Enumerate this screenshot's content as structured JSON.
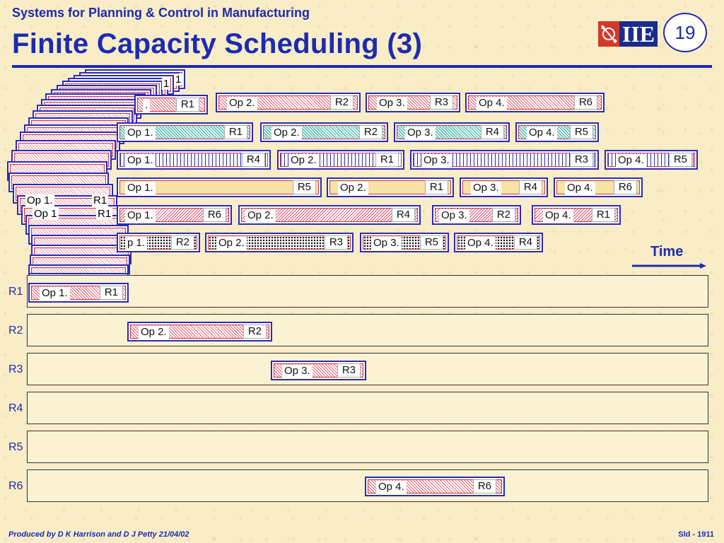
{
  "header": {
    "subtitle": "Systems for Planning & Control in Manufacturing",
    "title": "Finite Capacity Scheduling (3)",
    "logo_text": "IIE",
    "slide_number": "19"
  },
  "jobs": [
    {
      "ops": [
        {
          "label": "Op 2.",
          "resource": "R2",
          "pattern": "red"
        },
        {
          "label": "Op 3.",
          "resource": "R3",
          "pattern": "red"
        },
        {
          "label": "Op 4.",
          "resource": "R6",
          "pattern": "red"
        }
      ],
      "partial": {
        "label": ".",
        "resource": "R1"
      }
    },
    {
      "ops": [
        {
          "label": "Op 1.",
          "resource": "R1",
          "pattern": "teal"
        },
        {
          "label": "Op 2.",
          "resource": "R2",
          "pattern": "teal"
        },
        {
          "label": "Op 3.",
          "resource": "R4",
          "pattern": "teal"
        },
        {
          "label": "Op 4.",
          "resource": "R5",
          "pattern": "teal"
        }
      ]
    },
    {
      "ops": [
        {
          "label": "Op 1.",
          "resource": "R4",
          "pattern": "grid"
        },
        {
          "label": "Op 2.",
          "resource": "R1",
          "pattern": "grid"
        },
        {
          "label": "Op 3.",
          "resource": "R3",
          "pattern": "grid"
        },
        {
          "label": "Op 4.",
          "resource": "R5",
          "pattern": "grid"
        }
      ]
    },
    {
      "ops": [
        {
          "label": "Op 1.",
          "resource": "R5",
          "pattern": "yellow"
        },
        {
          "label": "Op 2.",
          "resource": "R1",
          "pattern": "yellow"
        },
        {
          "label": "Op 3.",
          "resource": "R4",
          "pattern": "yellow"
        },
        {
          "label": "Op 4.",
          "resource": "R6",
          "pattern": "yellow"
        }
      ]
    },
    {
      "ops": [
        {
          "label": "Op 1.",
          "resource": "R6",
          "pattern": "diag"
        },
        {
          "label": "Op 2.",
          "resource": "R4",
          "pattern": "diag"
        },
        {
          "label": "Op 3.",
          "resource": "R2",
          "pattern": "diag"
        },
        {
          "label": "Op 4.",
          "resource": "R1",
          "pattern": "diag"
        }
      ]
    },
    {
      "ops": [
        {
          "label": "p 1.",
          "resource": "R2",
          "pattern": "dots"
        },
        {
          "label": "Op 2.",
          "resource": "R3",
          "pattern": "dots"
        },
        {
          "label": "Op 3.",
          "resource": "R5",
          "pattern": "dots"
        },
        {
          "label": "Op 4.",
          "resource": "R4",
          "pattern": "dots"
        }
      ]
    }
  ],
  "stack_fragments": {
    "top_1": "1",
    "top_2": "1",
    "f1": "Op 1.",
    "f2": "R1",
    "f3": "Op 1",
    "f4": "R1",
    "f5": "Op 1",
    "f6": "R1"
  },
  "time_label": "Time",
  "resources": [
    "R1",
    "R2",
    "R3",
    "R4",
    "R5",
    "R6"
  ],
  "gantt": [
    {
      "lane": "R1",
      "label": "Op 1.",
      "resource": "R1"
    },
    {
      "lane": "R2",
      "label": "Op 2.",
      "resource": "R2"
    },
    {
      "lane": "R3",
      "label": "Op 3.",
      "resource": "R3"
    },
    {
      "lane": "R6",
      "label": "Op 4.",
      "resource": "R6"
    }
  ],
  "footer": {
    "left": "Produced by D K Harrison and D J Petty 21/04/02",
    "right": "Sld - 1911"
  }
}
